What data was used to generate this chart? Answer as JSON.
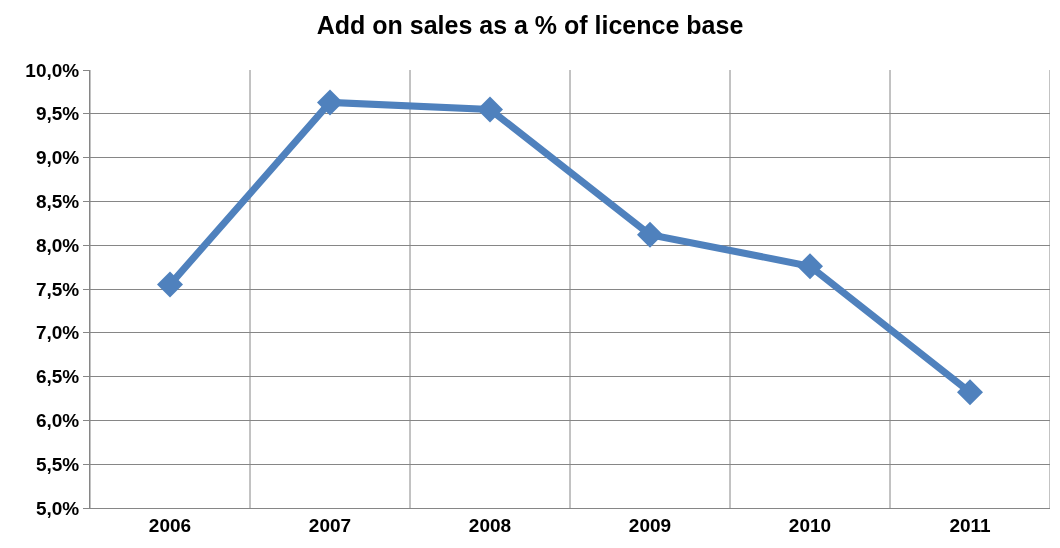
{
  "chart_data": {
    "type": "line",
    "title": "Add on sales as a % of licence base",
    "categories": [
      "2006",
      "2007",
      "2008",
      "2009",
      "2010",
      "2011"
    ],
    "series": [
      {
        "color": "#4f81bd",
        "values": [
          7.55,
          9.63,
          9.55,
          8.12,
          7.76,
          6.32
        ]
      }
    ],
    "ylim": [
      5,
      10
    ],
    "yticks": [
      {
        "value": 5,
        "label": "5,0%"
      },
      {
        "value": 5.5,
        "label": "5,5%"
      },
      {
        "value": 6,
        "label": "6,0%"
      },
      {
        "value": 6.5,
        "label": "6,5%"
      },
      {
        "value": 7,
        "label": "7,0%"
      },
      {
        "value": 7.5,
        "label": "7,5%"
      },
      {
        "value": 8,
        "label": "8,0%"
      },
      {
        "value": 8.5,
        "label": "8,5%"
      },
      {
        "value": 9,
        "label": "9,0%"
      },
      {
        "value": 9.5,
        "label": "9,5%"
      },
      {
        "value": 10,
        "label": "10,0%"
      }
    ],
    "grid": true,
    "marker": "diamond",
    "line_style": "solid"
  }
}
